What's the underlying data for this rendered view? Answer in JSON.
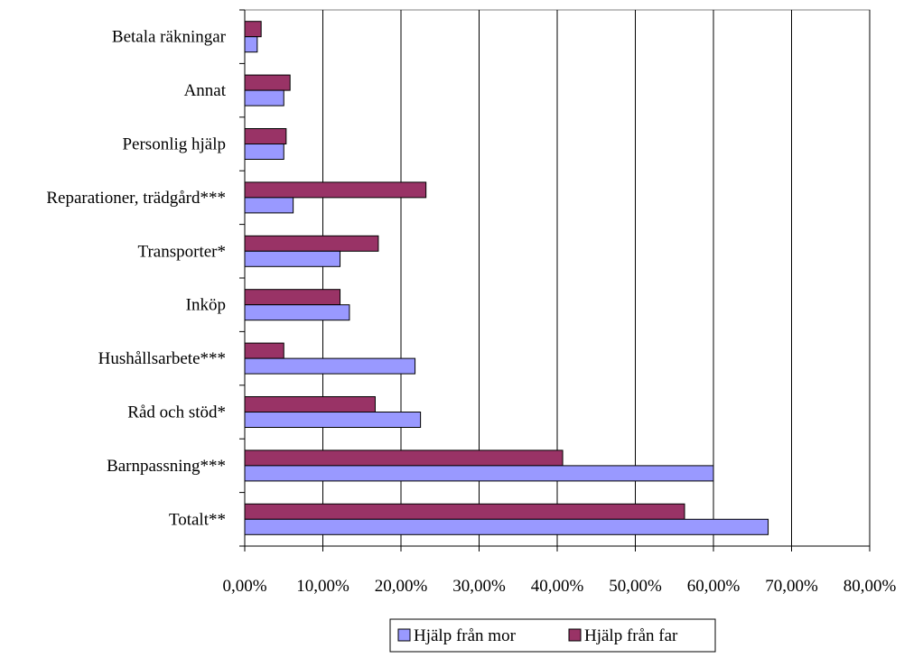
{
  "chart_data": {
    "type": "bar",
    "orientation": "horizontal",
    "categories": [
      "Totalt**",
      "Barnpassning***",
      "Råd och stöd*",
      "Hushållsarbete***",
      "Inköp",
      "Transporter*",
      "Reparationer, trädgård***",
      "Personlig hjälp",
      "Annat",
      "Betala räkningar"
    ],
    "series": [
      {
        "name": "Hjälp från mor",
        "color": "#9999ff",
        "values": [
          0.67,
          0.6,
          0.225,
          0.218,
          0.134,
          0.122,
          0.062,
          0.05,
          0.05,
          0.016
        ]
      },
      {
        "name": "Hjälp från far",
        "color": "#993366",
        "values": [
          0.563,
          0.407,
          0.167,
          0.05,
          0.122,
          0.171,
          0.232,
          0.053,
          0.058,
          0.021
        ]
      }
    ],
    "xlim": [
      0,
      0.8
    ],
    "x_ticks": [
      0,
      0.1,
      0.2,
      0.3,
      0.4,
      0.5,
      0.6,
      0.7,
      0.8
    ],
    "x_tick_labels": [
      "0,00%",
      "10,00%",
      "20,00%",
      "30,00%",
      "40,00%",
      "50,00%",
      "60,00%",
      "70,00%",
      "80,00%"
    ],
    "grid": "vertical major gridlines",
    "legend_position": "bottom"
  }
}
